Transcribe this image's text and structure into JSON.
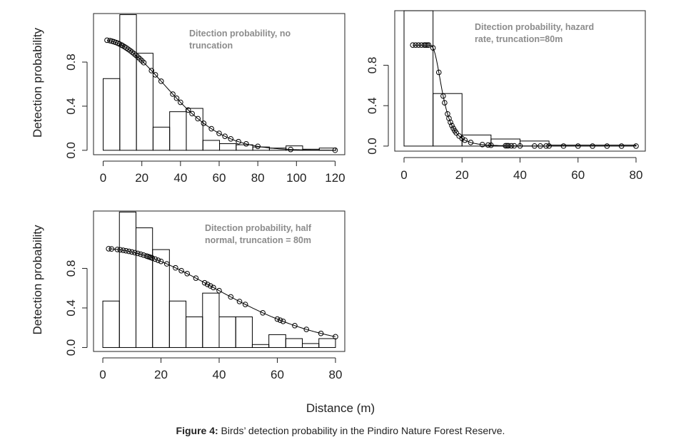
{
  "figure": {
    "caption_label": "Figure 4:",
    "caption_text": " Birds’ detection probability in the Pindiro Nature Forest Reserve.",
    "shared_xlabel": "Distance (m)"
  },
  "chart_data": [
    {
      "type": "bar",
      "annotation_lines": [
        "Ditection probability, no",
        "truncation"
      ],
      "ylabel": "Detection probability",
      "x_ticks": [
        0,
        20,
        40,
        60,
        80,
        100,
        120
      ],
      "y_ticks": [
        0.0,
        0.4,
        0.8
      ],
      "xlim": [
        -5,
        125
      ],
      "ylim": [
        -0.04,
        1.24
      ],
      "bins": [
        {
          "x0": 0,
          "x1": 8.6,
          "value": 0.65
        },
        {
          "x0": 8.6,
          "x1": 17.2,
          "value": 1.23
        },
        {
          "x0": 17.2,
          "x1": 25.8,
          "value": 0.88
        },
        {
          "x0": 25.8,
          "x1": 34.4,
          "value": 0.21
        },
        {
          "x0": 34.4,
          "x1": 43,
          "value": 0.35
        },
        {
          "x0": 43,
          "x1": 51.6,
          "value": 0.38
        },
        {
          "x0": 51.6,
          "x1": 60.2,
          "value": 0.09
        },
        {
          "x0": 60.2,
          "x1": 68.8,
          "value": 0.06
        },
        {
          "x0": 68.8,
          "x1": 77.4,
          "value": 0.05
        },
        {
          "x0": 77.4,
          "x1": 86,
          "value": 0.03
        },
        {
          "x0": 86,
          "x1": 94.6,
          "value": 0.02
        },
        {
          "x0": 94.6,
          "x1": 103.2,
          "value": 0.04
        },
        {
          "x0": 103.2,
          "x1": 111.8,
          "value": 0.01
        },
        {
          "x0": 111.8,
          "x1": 120.4,
          "value": 0.02
        }
      ],
      "curve": {
        "model": "half-normal",
        "sigma": 31
      },
      "points_x": [
        2,
        3.5,
        4.5,
        5.5,
        6.5,
        7.5,
        8.5,
        9.5,
        10,
        11,
        12,
        13,
        14,
        15,
        16,
        17,
        18,
        19,
        20,
        21,
        25,
        27,
        30,
        36,
        38,
        40,
        44,
        46,
        49,
        52,
        56,
        60,
        63,
        66,
        70,
        74,
        80,
        97,
        120
      ]
    },
    {
      "type": "bar",
      "annotation_lines": [
        "Ditection probability, hazard",
        "rate, truncation=80m"
      ],
      "ylabel": "",
      "x_ticks": [
        0,
        20,
        40,
        60,
        80
      ],
      "y_ticks": [
        0.0,
        0.4,
        0.8
      ],
      "xlim": [
        -3.2,
        83.2
      ],
      "ylim": [
        -0.05,
        1.34
      ],
      "bins": [
        {
          "x0": 0,
          "x1": 10,
          "value": 1.34
        },
        {
          "x0": 10,
          "x1": 20,
          "value": 0.52
        },
        {
          "x0": 20,
          "x1": 30,
          "value": 0.11
        },
        {
          "x0": 30,
          "x1": 40,
          "value": 0.07
        },
        {
          "x0": 40,
          "x1": 50,
          "value": 0.05
        },
        {
          "x0": 50,
          "x1": 60,
          "value": 0.01
        },
        {
          "x0": 60,
          "x1": 70,
          "value": 0.01
        },
        {
          "x0": 70,
          "x1": 80,
          "value": 0.01
        }
      ],
      "curve": {
        "model": "hazard-rate",
        "sigma": 12.6,
        "b": 5.5
      },
      "points_x": [
        3,
        4,
        5,
        6,
        7,
        7.5,
        8,
        8.5,
        10,
        12,
        13.5,
        14,
        15,
        15.5,
        16,
        16.5,
        17,
        17.5,
        18,
        19,
        20,
        21,
        23,
        27,
        29,
        30,
        35,
        35.5,
        36,
        37,
        38,
        40,
        45,
        47,
        49,
        50,
        55,
        60,
        65,
        70,
        75,
        80
      ]
    },
    {
      "type": "bar",
      "annotation_lines": [
        "Ditection probability, half",
        "normal, truncation = 80m"
      ],
      "ylabel": "Detection probability",
      "x_ticks": [
        0,
        20,
        40,
        60,
        80
      ],
      "y_ticks": [
        0.0,
        0.4,
        0.8
      ],
      "xlim": [
        -3.2,
        83.2
      ],
      "ylim": [
        -0.04,
        1.38
      ],
      "bins": [
        {
          "x0": 0,
          "x1": 5.7,
          "value": 0.47
        },
        {
          "x0": 5.7,
          "x1": 11.4,
          "value": 1.37
        },
        {
          "x0": 11.4,
          "x1": 17.1,
          "value": 1.21
        },
        {
          "x0": 17.1,
          "x1": 22.9,
          "value": 0.99
        },
        {
          "x0": 22.9,
          "x1": 28.6,
          "value": 0.47
        },
        {
          "x0": 28.6,
          "x1": 34.3,
          "value": 0.31
        },
        {
          "x0": 34.3,
          "x1": 40,
          "value": 0.55
        },
        {
          "x0": 40,
          "x1": 45.7,
          "value": 0.31
        },
        {
          "x0": 45.7,
          "x1": 51.4,
          "value": 0.31
        },
        {
          "x0": 51.4,
          "x1": 57.1,
          "value": 0.03
        },
        {
          "x0": 57.1,
          "x1": 62.9,
          "value": 0.13
        },
        {
          "x0": 62.9,
          "x1": 68.6,
          "value": 0.09
        },
        {
          "x0": 68.6,
          "x1": 74.3,
          "value": 0.04
        },
        {
          "x0": 74.3,
          "x1": 80,
          "value": 0.09
        }
      ],
      "curve": {
        "model": "half-normal",
        "sigma": 38
      },
      "points_x": [
        2,
        3,
        5,
        6,
        7,
        8,
        9,
        10,
        11,
        12,
        13,
        14,
        15,
        15.5,
        16,
        16.5,
        17,
        18,
        19,
        20,
        22,
        25,
        27,
        29,
        32,
        35,
        36,
        37,
        38,
        40,
        44,
        47,
        49,
        55,
        60,
        61,
        62,
        66,
        70,
        75,
        80
      ]
    }
  ],
  "colors": {
    "line": "#000000",
    "axis": "#222222",
    "annotation": "#8c8c8c"
  }
}
